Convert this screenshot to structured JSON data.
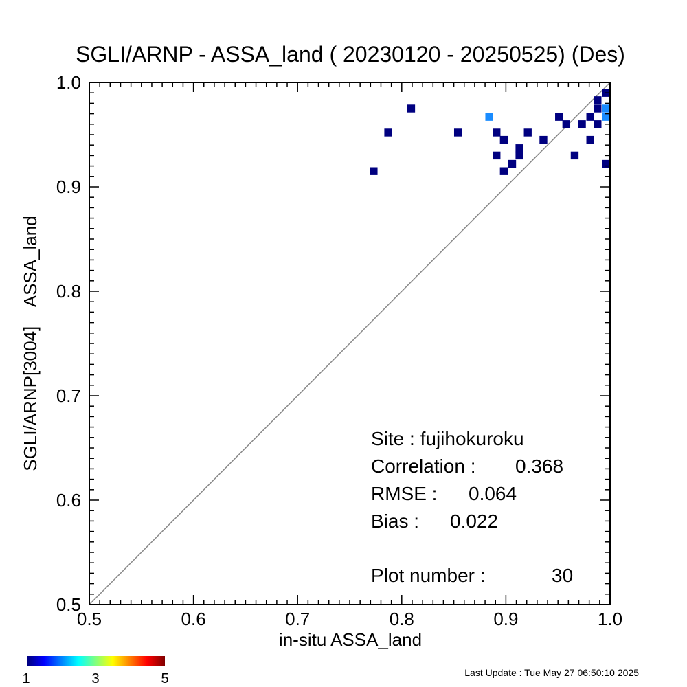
{
  "chart_data": {
    "type": "heatmap",
    "title": "SGLI/ARNP - ASSA_land ( 20230120 - 20250525) (Des)",
    "xlabel": "in-situ ASSA_land",
    "ylabel": "SGLI/ARNP[3004]    ASSA_land",
    "xlim": [
      0.5,
      1.0
    ],
    "ylim": [
      0.5,
      1.0
    ],
    "x_ticks": [
      "0.5",
      "0.6",
      "0.7",
      "0.8",
      "0.9",
      "1.0"
    ],
    "y_ticks": [
      "0.5",
      "0.6",
      "0.7",
      "0.8",
      "0.9",
      "1.0"
    ],
    "one_to_one_line": true,
    "grid": false,
    "cell_size": 0.0075,
    "points": [
      {
        "x": 0.773,
        "y": 0.915,
        "count": 1
      },
      {
        "x": 0.787,
        "y": 0.952,
        "count": 1
      },
      {
        "x": 0.809,
        "y": 0.975,
        "count": 1
      },
      {
        "x": 0.854,
        "y": 0.952,
        "count": 1
      },
      {
        "x": 0.884,
        "y": 0.967,
        "count": 2
      },
      {
        "x": 0.891,
        "y": 0.952,
        "count": 1
      },
      {
        "x": 0.891,
        "y": 0.93,
        "count": 1
      },
      {
        "x": 0.898,
        "y": 0.945,
        "count": 1
      },
      {
        "x": 0.898,
        "y": 0.915,
        "count": 1
      },
      {
        "x": 0.906,
        "y": 0.922,
        "count": 1
      },
      {
        "x": 0.913,
        "y": 0.937,
        "count": 1
      },
      {
        "x": 0.913,
        "y": 0.93,
        "count": 1
      },
      {
        "x": 0.921,
        "y": 0.952,
        "count": 1
      },
      {
        "x": 0.936,
        "y": 0.945,
        "count": 1
      },
      {
        "x": 0.951,
        "y": 0.967,
        "count": 1
      },
      {
        "x": 0.958,
        "y": 0.96,
        "count": 1
      },
      {
        "x": 0.966,
        "y": 0.93,
        "count": 1
      },
      {
        "x": 0.973,
        "y": 0.96,
        "count": 1
      },
      {
        "x": 0.981,
        "y": 0.967,
        "count": 1
      },
      {
        "x": 0.981,
        "y": 0.945,
        "count": 1
      },
      {
        "x": 0.988,
        "y": 0.983,
        "count": 1
      },
      {
        "x": 0.988,
        "y": 0.975,
        "count": 1
      },
      {
        "x": 0.988,
        "y": 0.96,
        "count": 1
      },
      {
        "x": 0.996,
        "y": 0.99,
        "count": 1
      },
      {
        "x": 0.996,
        "y": 0.975,
        "count": 2
      },
      {
        "x": 0.996,
        "y": 0.967,
        "count": 2
      },
      {
        "x": 0.996,
        "y": 0.922,
        "count": 1
      }
    ],
    "colorbar": {
      "min": 1,
      "max": 5,
      "labels": [
        "1",
        "3",
        "5"
      ],
      "colors": [
        "#000080",
        "#0000ff",
        "#00ffff",
        "#ffff00",
        "#ff0000",
        "#800000"
      ]
    },
    "stats": {
      "site": "Site : fujihokuroku",
      "correlation_label": "Correlation :",
      "correlation_value": "0.368",
      "rmse_label": "RMSE :",
      "rmse_value": "0.064",
      "bias_label": "Bias :",
      "bias_value": "0.022",
      "plot_number_label": "Plot number :",
      "plot_number_value": "30"
    },
    "last_update": "Last Update : Tue May 27 06:50:10 2025"
  }
}
